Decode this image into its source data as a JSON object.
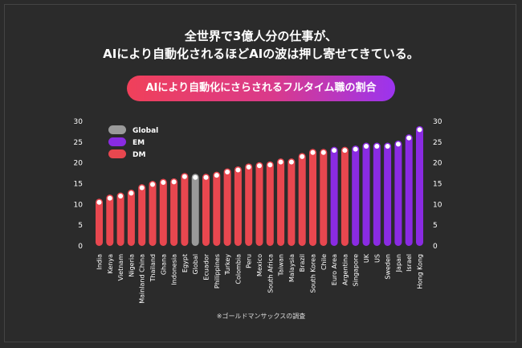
{
  "title_line1": "全世界で3億人分の仕事が、",
  "title_line2": "AIにより自動化されるほどAIの波は押し寄せてきている。",
  "subtitle": "AIにより自動化にさらされるフルタイム職の割合",
  "footnote": "※ゴールドマンサックスの調査",
  "colors": {
    "Global": "#9a9a9a",
    "EM": "#8a2be2",
    "DM": "#e8474f",
    "background": "#2b2b2b"
  },
  "chart_data": {
    "type": "bar",
    "categories": [
      "India",
      "Kenya",
      "Vietnam",
      "Nigeria",
      "Mainland China",
      "Thailand",
      "Ghana",
      "Indonesia",
      "Egypt",
      "Global",
      "Ecuador",
      "Philippines",
      "Turkey",
      "Colombia",
      "Peru",
      "Mexico",
      "South Africa",
      "Taiwan",
      "Malaysia",
      "Brazil",
      "South Korea",
      "Chile",
      "Euro Area",
      "Argentina",
      "Singapore",
      "UK",
      "US",
      "Sweden",
      "Japan",
      "Israel",
      "Hong Kong"
    ],
    "values": [
      10.5,
      11.5,
      12,
      12.7,
      14,
      14.8,
      15.3,
      15.4,
      16.7,
      16.5,
      16.5,
      17,
      17.8,
      18.3,
      19,
      19.3,
      19.5,
      20.2,
      20.2,
      21.5,
      22.5,
      22.5,
      23,
      23,
      23.3,
      24,
      24,
      24,
      24.5,
      26,
      28
    ],
    "groups": [
      "DM",
      "DM",
      "DM",
      "DM",
      "DM",
      "DM",
      "DM",
      "DM",
      "DM",
      "Global",
      "DM",
      "DM",
      "DM",
      "DM",
      "DM",
      "DM",
      "DM",
      "DM",
      "DM",
      "DM",
      "DM",
      "DM",
      "EM",
      "DM",
      "EM",
      "EM",
      "EM",
      "EM",
      "EM",
      "EM",
      "EM"
    ],
    "legend": [
      "Global",
      "EM",
      "DM"
    ],
    "legend_position": "top-left",
    "ylim": [
      0,
      30
    ],
    "yticks": [
      0,
      5,
      10,
      15,
      20,
      25,
      30
    ],
    "y_axis_both_sides": true,
    "grid": false
  }
}
